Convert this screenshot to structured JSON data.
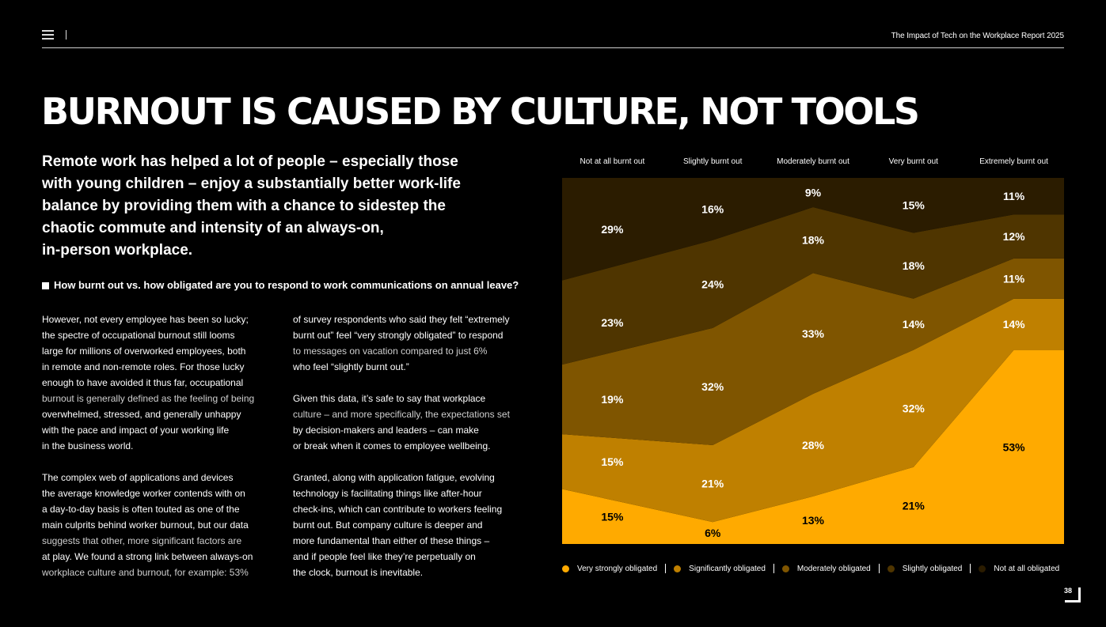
{
  "header": {
    "report_title": "The Impact of Tech on the Workplace Report 2025"
  },
  "headline": "BURNOUT IS CAUSED BY CULTURE, NOT TOOLS",
  "intro": [
    "Remote work has helped a lot of people – especially those",
    "with young children – enjoy a substantially better work-life",
    "balance by providing them with a chance to sidestep the",
    "chaotic commute and intensity of an always-on,",
    "in-person workplace."
  ],
  "question": "How burnt out vs. how obligated are you to respond to work communications on annual leave?",
  "body_col1": [
    "However, not every employee has been so lucky;",
    "the spectre of occupational burnout still looms",
    "large for millions of overworked employees, both",
    "in remote and non-remote roles. For those lucky",
    "enough to have avoided it thus far, occupational",
    "burnout is generally defined as the feeling of being",
    "overwhelmed, stressed, and generally unhappy",
    "with the pace and impact of your working life",
    "in the business world.",
    "",
    "The complex web of applications and devices",
    "the average knowledge worker contends with on",
    "a day-to-day basis is often touted as one of the",
    "main culprits behind worker burnout, but our data",
    "suggests that other, more significant factors are",
    "at play. We found a strong link between always-on",
    "workplace culture and burnout, for example: 53%"
  ],
  "body_col2": [
    "of survey respondents who said they felt “extremely",
    "burnt out” feel “very strongly obligated” to respond",
    "to messages on vacation compared to just 6%",
    "who feel “slightly burnt out.”",
    "",
    "Given this data, it’s safe to say that workplace",
    "culture – and more specifically, the expectations set",
    "by decision-makers and leaders – can make",
    "or break when it comes to employee wellbeing.",
    "",
    "Granted, along with application fatigue, evolving",
    "technology is facilitating things like after-hour",
    "check-ins, which can contribute to workers feeling",
    "burnt out. But company culture is deeper and",
    "more fundamental than either of these things –",
    "and if people feel like they’re perpetually on",
    "the clock, burnout is inevitable."
  ],
  "page_number": "38",
  "chart_data": {
    "type": "area",
    "stacked": true,
    "normalized": true,
    "categories": [
      "Not at all burnt out",
      "Slightly burnt out",
      "Moderately burnt out",
      "Very burnt out",
      "Extremely burnt out"
    ],
    "series": [
      {
        "name": "Very strongly obligated",
        "color": "#FFAA00",
        "label_color": "#000000",
        "values": [
          15,
          6,
          13,
          21,
          53
        ]
      },
      {
        "name": "Significantly obligated",
        "color": "#BF8000",
        "label_color": "#ffffff",
        "values": [
          15,
          21,
          28,
          32,
          14
        ]
      },
      {
        "name": "Moderately obligated",
        "color": "#7F5500",
        "label_color": "#ffffff",
        "values": [
          19,
          32,
          33,
          14,
          11
        ]
      },
      {
        "name": "Slightly obligated",
        "color": "#4F3500",
        "label_color": "#ffffff",
        "values": [
          23,
          24,
          18,
          18,
          12
        ]
      },
      {
        "name": "Not at all obligated",
        "color": "#2B1C00",
        "label_color": "#ffffff",
        "values": [
          29,
          16,
          9,
          15,
          11
        ]
      }
    ],
    "ylim": [
      0,
      100
    ],
    "legend_position": "bottom"
  }
}
